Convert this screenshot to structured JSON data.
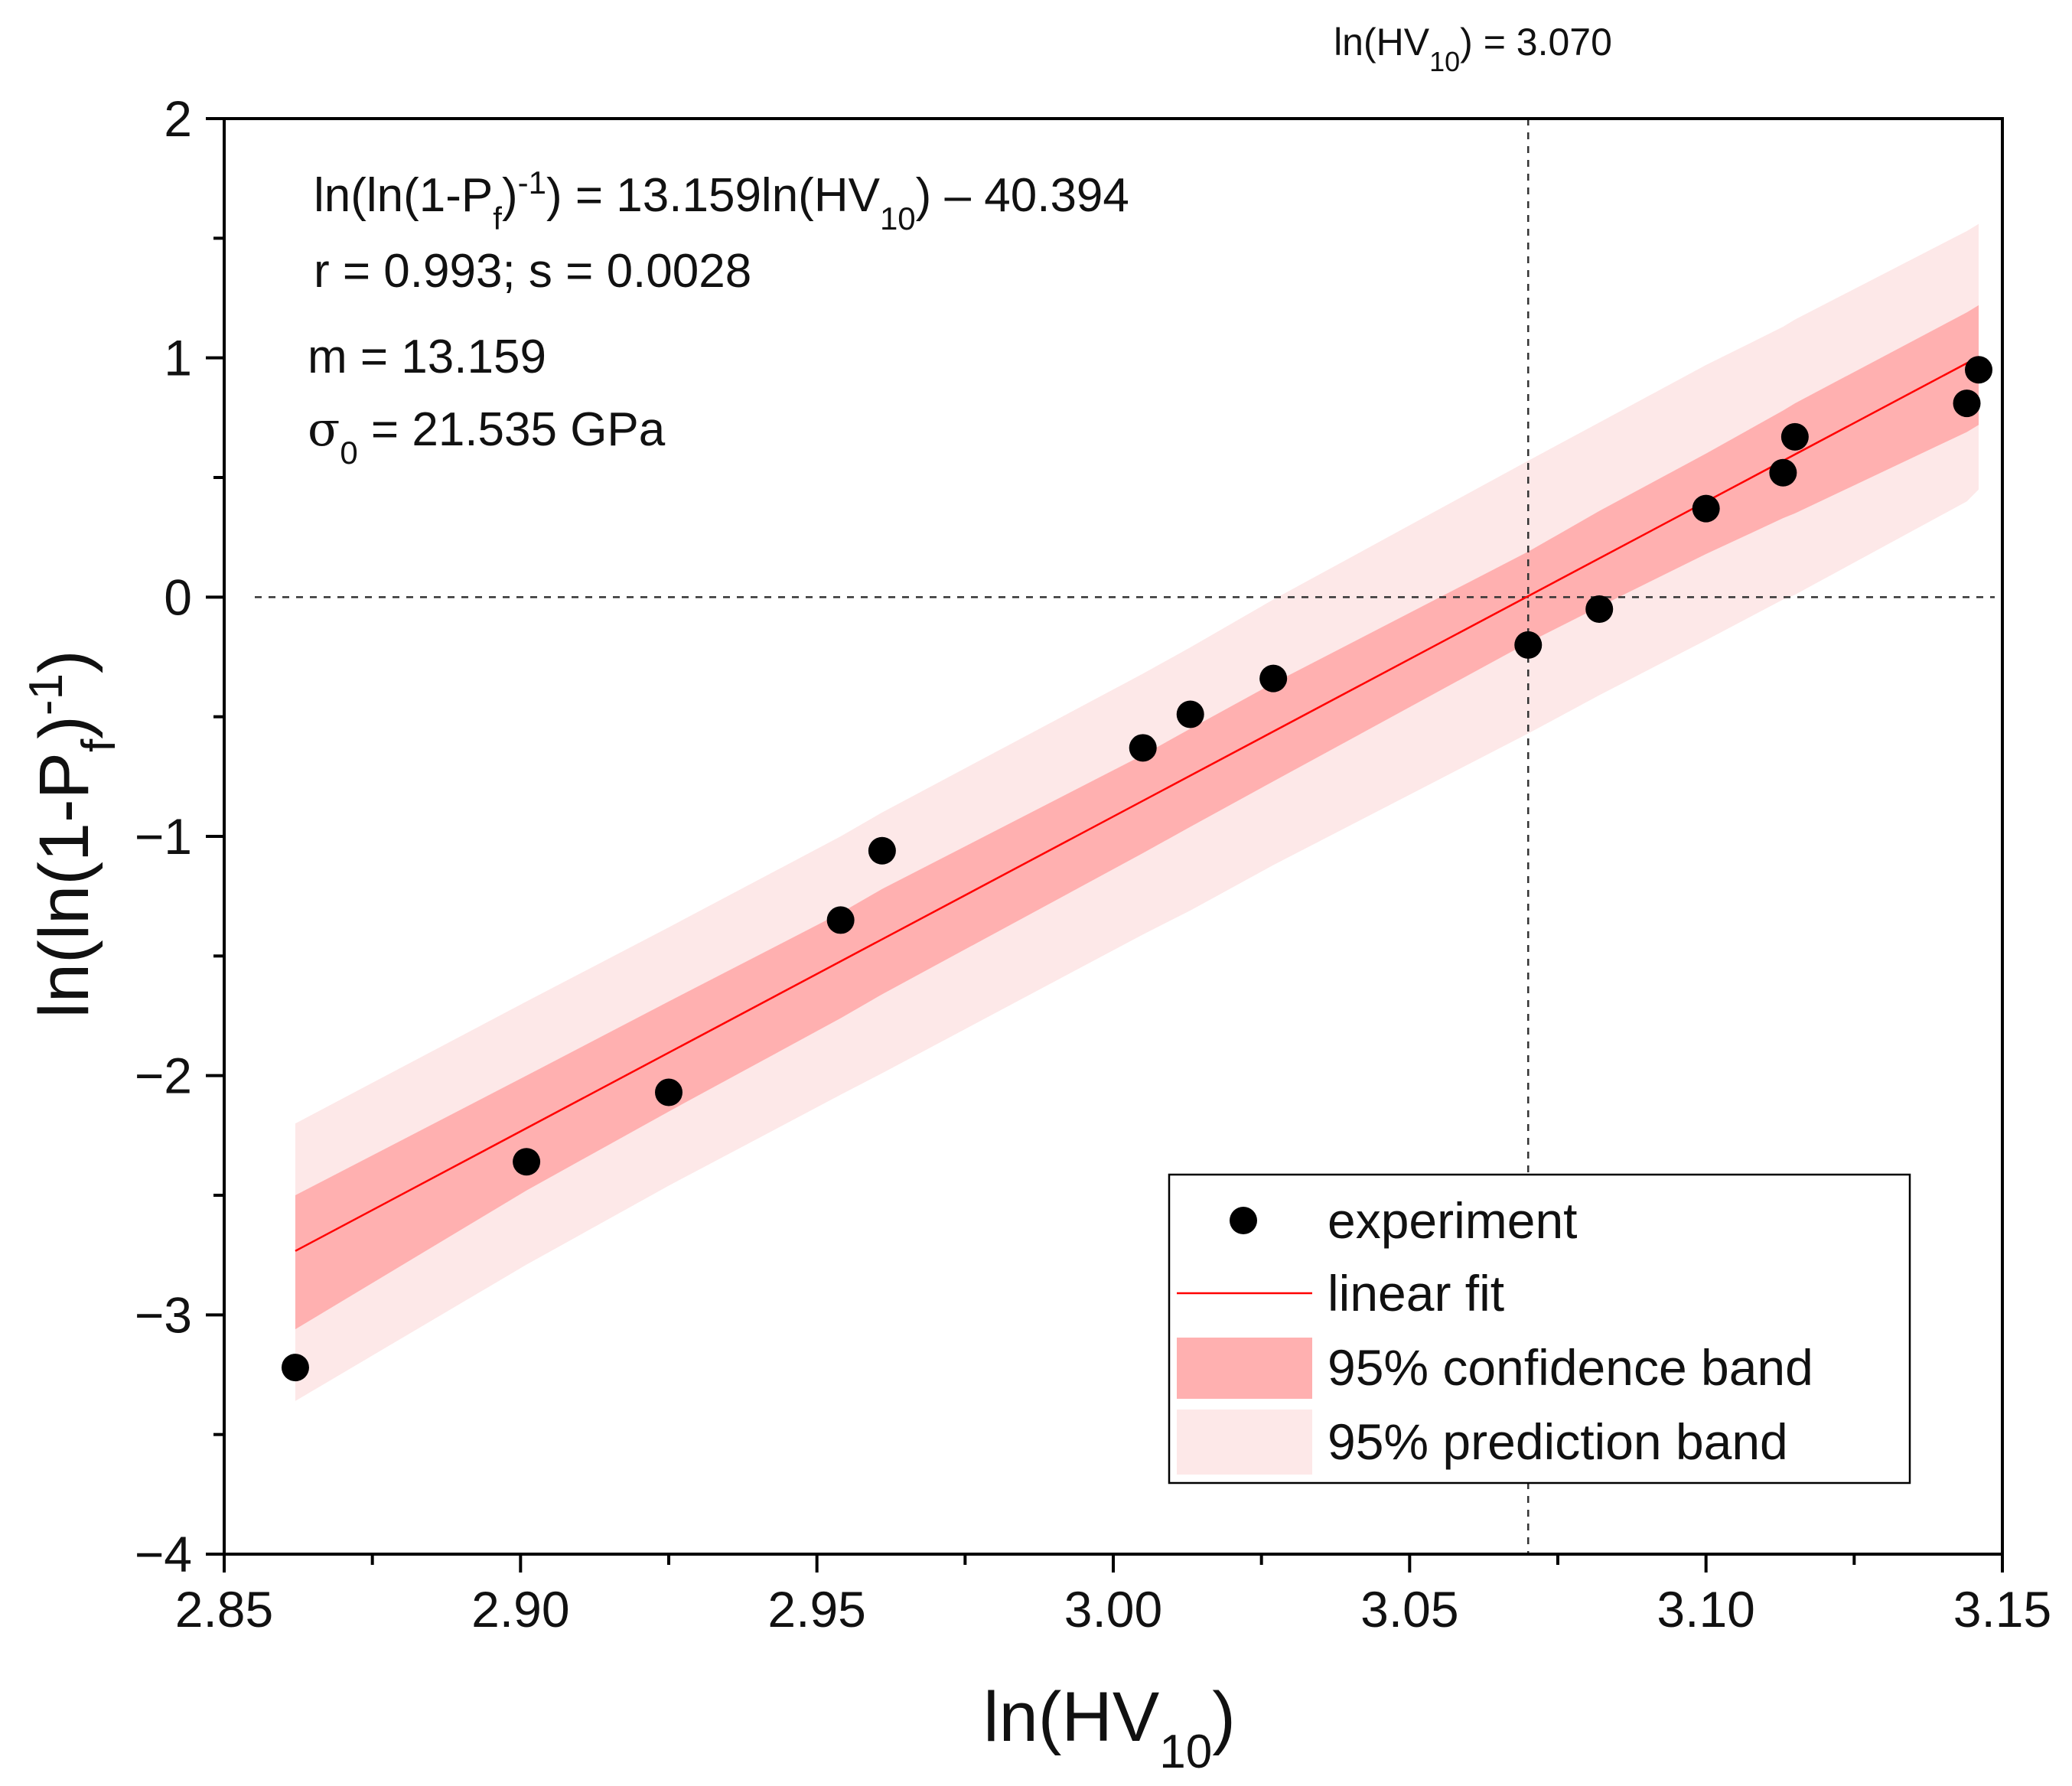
{
  "chart_data": {
    "type": "scatter",
    "title": "",
    "xlabel": "ln(HV10)",
    "ylabel": "ln(ln(1-Pf)-1)",
    "xlim": [
      2.85,
      3.15
    ],
    "ylim": [
      -4,
      2
    ],
    "x_ticks": [
      2.85,
      2.9,
      2.95,
      3.0,
      3.05,
      3.1,
      3.15
    ],
    "x_tick_labels": [
      "2.85",
      "2.90",
      "2.95",
      "3.00",
      "3.05",
      "3.10",
      "3.15"
    ],
    "y_ticks": [
      -4,
      -3,
      -2,
      -1,
      0,
      1,
      2
    ],
    "y_tick_labels": [
      "−4",
      "−3",
      "−2",
      "−1",
      "0",
      "1",
      "2"
    ],
    "grid": false,
    "legend_position": "bottom-right",
    "series": [
      {
        "name": "experiment",
        "kind": "scatter",
        "color": "#000000",
        "x": [
          2.862,
          2.901,
          2.925,
          2.954,
          2.961,
          3.005,
          3.013,
          3.027,
          3.07,
          3.082,
          3.1,
          3.113,
          3.115,
          3.144,
          3.146
        ],
        "y": [
          -3.22,
          -2.36,
          -2.07,
          -1.35,
          -1.06,
          -0.63,
          -0.49,
          -0.34,
          -0.2,
          -0.05,
          0.37,
          0.52,
          0.67,
          0.81,
          0.95
        ]
      },
      {
        "name": "linear fit",
        "kind": "line",
        "color": "#ff0000",
        "slope": 13.159,
        "intercept": -40.394,
        "x_range": [
          2.862,
          3.146
        ]
      },
      {
        "name": "95% confidence band",
        "kind": "band",
        "color": "#ffb0b0",
        "x": [
          2.862,
          2.901,
          2.925,
          2.954,
          2.961,
          3.005,
          3.013,
          3.027,
          3.07,
          3.082,
          3.1,
          3.113,
          3.115,
          3.144,
          3.146
        ],
        "lower": [
          -3.06,
          -2.48,
          -2.15,
          -1.76,
          -1.66,
          -1.07,
          -0.96,
          -0.77,
          -0.19,
          -0.04,
          0.18,
          0.33,
          0.35,
          0.69,
          0.72
        ],
        "upper": [
          -2.5,
          -2.0,
          -1.69,
          -1.32,
          -1.22,
          -0.66,
          -0.55,
          -0.36,
          0.19,
          0.36,
          0.6,
          0.78,
          0.81,
          1.19,
          1.22
        ]
      },
      {
        "name": "95% prediction band",
        "kind": "band",
        "color": "#fde8e8",
        "x": [
          2.862,
          2.901,
          2.925,
          2.954,
          2.961,
          3.005,
          3.013,
          3.027,
          3.07,
          3.082,
          3.1,
          3.113,
          3.115,
          3.144,
          3.146
        ],
        "lower": [
          -3.36,
          -2.79,
          -2.46,
          -2.08,
          -1.99,
          -1.41,
          -1.31,
          -1.12,
          -0.57,
          -0.41,
          -0.18,
          -0.01,
          0.01,
          0.4,
          0.45
        ],
        "upper": [
          -2.2,
          -1.69,
          -1.38,
          -1.0,
          -0.9,
          -0.32,
          -0.21,
          -0.01,
          0.57,
          0.73,
          0.97,
          1.13,
          1.16,
          1.53,
          1.56
        ]
      }
    ],
    "reference_lines": {
      "vertical_x": 3.07,
      "horizontal_y": 0,
      "vertical_label": "ln(HV10) = 3.070"
    },
    "annotations": [
      "ln(ln(1-Pf)-1) = 13.159ln(HV10) – 40.394",
      "r = 0.993; s = 0.0028",
      "m = 13.159",
      "σ0 = 21.535 GPa"
    ]
  },
  "text": {
    "vline_label_pre": "ln(HV",
    "vline_label_sub": "10",
    "vline_label_post": ") = 3.070",
    "eq_part1": "ln(ln(1-P",
    "eq_sub_f": "f",
    "eq_part2": ")",
    "eq_sup": "-1",
    "eq_part3": ") = 13.159ln(HV",
    "eq_sub_10": "10",
    "eq_part4": ") – 40.394",
    "stats": "r = 0.993; s = 0.0028",
    "m_line": "m = 13.159",
    "sigma_symbol": "σ",
    "sigma_sub": "0",
    "sigma_rest": " = 21.535 GPa",
    "xlabel_pre": "ln(HV",
    "xlabel_sub": "10",
    "xlabel_post": ")",
    "ylabel_pre": "ln(ln(1-P",
    "ylabel_sub": "f",
    "ylabel_mid": ")",
    "ylabel_sup": "-1",
    "ylabel_post": ")",
    "legend_experiment": "experiment",
    "legend_fit": "linear fit",
    "legend_conf": "95% confidence band",
    "legend_pred": "95% prediction band"
  },
  "colors": {
    "marker": "#000000",
    "fit": "#ff0000",
    "confidence": "#ffb0b0",
    "prediction": "#fde8e8",
    "axis": "#000000"
  }
}
